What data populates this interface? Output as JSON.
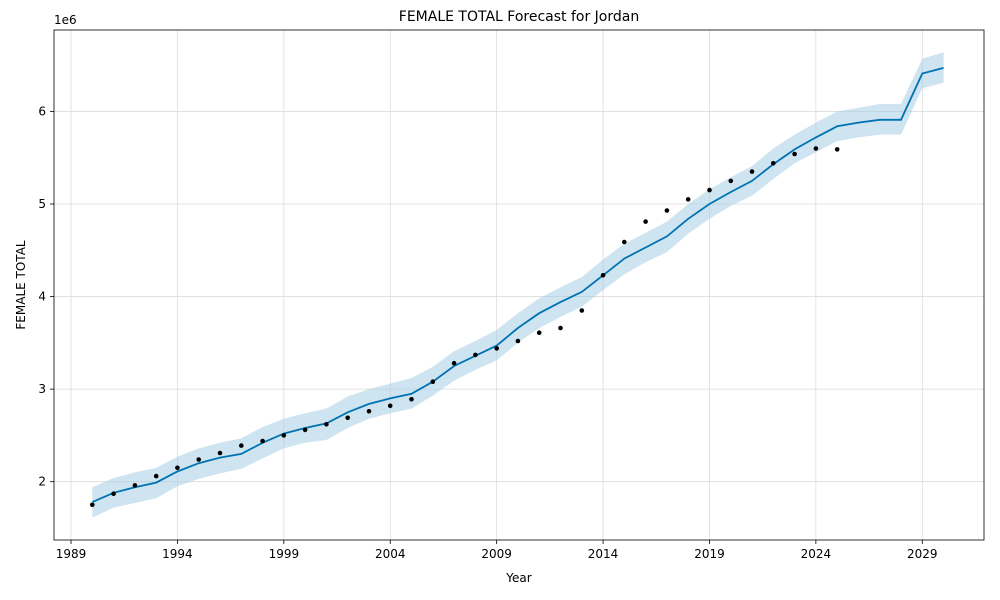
{
  "chart_data": {
    "type": "line",
    "title": "FEMALE TOTAL Forecast for Jordan",
    "xlabel": "Year",
    "ylabel": "FEMALE TOTAL",
    "y_scale_label": "1e6",
    "xlim": [
      1988.2,
      2031.9
    ],
    "ylim": [
      1.37,
      6.88
    ],
    "x_ticks": [
      1989,
      1994,
      1999,
      2004,
      2009,
      2014,
      2019,
      2024,
      2029
    ],
    "x_tick_labels": [
      "1989",
      "1994",
      "1999",
      "2004",
      "2009",
      "2014",
      "2019",
      "2024",
      "2029"
    ],
    "y_ticks": [
      2,
      3,
      4,
      5,
      6
    ],
    "y_tick_labels": [
      "2",
      "3",
      "4",
      "5",
      "6"
    ],
    "grid": true,
    "colors": {
      "forecast_line": "#0072B2",
      "interval_fill": "#A6CEE3",
      "observed_points": "#000000"
    },
    "series": [
      {
        "type": "scatter",
        "x": [
          1990,
          1991,
          1992,
          1993,
          1994,
          1995,
          1996,
          1997,
          1998,
          1999,
          2000,
          2001,
          2002,
          2003,
          2004,
          2005,
          2006,
          2007,
          2008,
          2009,
          2010,
          2011,
          2012,
          2013,
          2014,
          2015,
          2016,
          2017,
          2018,
          2019,
          2020,
          2021,
          2022,
          2023,
          2024,
          2025
        ],
        "values": [
          1.75,
          1.87,
          1.96,
          2.06,
          2.15,
          2.24,
          2.31,
          2.39,
          2.44,
          2.5,
          2.56,
          2.62,
          2.69,
          2.76,
          2.82,
          2.89,
          3.08,
          3.28,
          3.37,
          3.44,
          3.52,
          3.61,
          3.66,
          3.85,
          4.23,
          4.59,
          4.81,
          4.93,
          5.05,
          5.15,
          5.25,
          5.35,
          5.44,
          5.54,
          5.6,
          5.59
        ]
      },
      {
        "type": "line",
        "x": [
          1990,
          1991,
          1992,
          1993,
          1994,
          1995,
          1996,
          1997,
          1998,
          1999,
          2000,
          2001,
          2002,
          2003,
          2004,
          2005,
          2006,
          2007,
          2008,
          2009,
          2010,
          2011,
          2012,
          2013,
          2014,
          2015,
          2016,
          2017,
          2018,
          2019,
          2020,
          2021,
          2022,
          2023,
          2024,
          2025,
          2026,
          2027,
          2028,
          2029,
          2030
        ],
        "values": [
          1.78,
          1.88,
          1.94,
          1.99,
          2.11,
          2.2,
          2.26,
          2.3,
          2.42,
          2.52,
          2.58,
          2.63,
          2.75,
          2.84,
          2.9,
          2.95,
          3.08,
          3.25,
          3.36,
          3.47,
          3.66,
          3.82,
          3.94,
          4.05,
          4.23,
          4.41,
          4.53,
          4.65,
          4.84,
          5.0,
          5.13,
          5.25,
          5.43,
          5.59,
          5.72,
          5.84,
          5.88,
          5.91,
          5.91,
          6.41,
          6.47
        ]
      },
      {
        "type": "interval",
        "x": [
          1990,
          1991,
          1992,
          1993,
          1994,
          1995,
          1996,
          1997,
          1998,
          1999,
          2000,
          2001,
          2002,
          2003,
          2004,
          2005,
          2006,
          2007,
          2008,
          2009,
          2010,
          2011,
          2012,
          2013,
          2014,
          2015,
          2016,
          2017,
          2018,
          2019,
          2020,
          2021,
          2022,
          2023,
          2024,
          2025,
          2026,
          2027,
          2028,
          2029,
          2030
        ],
        "lower": [
          1.61,
          1.72,
          1.77,
          1.82,
          1.95,
          2.03,
          2.09,
          2.14,
          2.25,
          2.36,
          2.42,
          2.45,
          2.58,
          2.68,
          2.74,
          2.79,
          2.93,
          3.09,
          3.21,
          3.31,
          3.5,
          3.66,
          3.78,
          3.89,
          4.07,
          4.24,
          4.37,
          4.48,
          4.68,
          4.84,
          4.98,
          5.09,
          5.27,
          5.44,
          5.56,
          5.68,
          5.72,
          5.75,
          5.75,
          6.25,
          6.31
        ],
        "upper": [
          1.94,
          2.04,
          2.1,
          2.15,
          2.27,
          2.36,
          2.42,
          2.47,
          2.59,
          2.68,
          2.74,
          2.79,
          2.92,
          3.0,
          3.06,
          3.12,
          3.24,
          3.41,
          3.52,
          3.64,
          3.82,
          3.98,
          4.1,
          4.21,
          4.4,
          4.57,
          4.69,
          4.81,
          5.0,
          5.16,
          5.29,
          5.41,
          5.6,
          5.75,
          5.88,
          6.0,
          6.04,
          6.08,
          6.08,
          6.57,
          6.64
        ]
      }
    ]
  }
}
